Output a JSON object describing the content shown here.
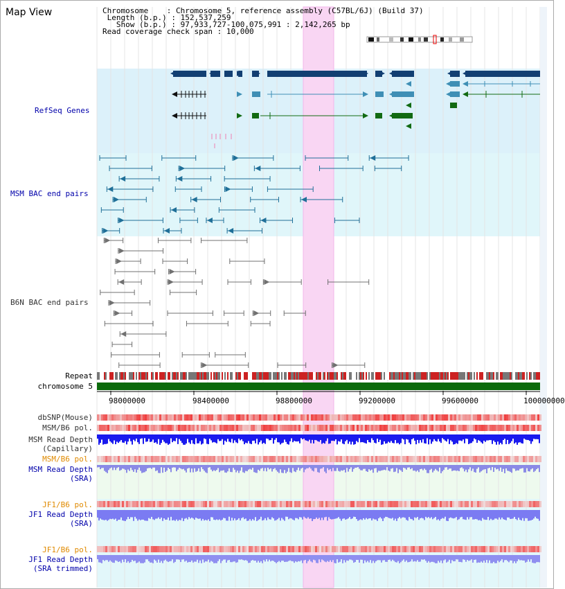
{
  "header": {
    "title": "Map View",
    "chromosome_label": "Chromosome",
    "chromosome_value": "Chromosome 5, reference assembly (C57BL/6J) (Build 37)",
    "length_label": "Length (b.p.)",
    "length_value": "152,537,259",
    "show_label": "Show (b.p.)",
    "show_value": "97,933,727-100,075,991 : 2,142,265 bp",
    "coverage_label": "Read coverage check span",
    "coverage_value": "10,000"
  },
  "tracks": {
    "refseq": "RefSeq Genes",
    "msm_bac": "MSM BAC end pairs",
    "b6n_bac": "B6N BAC end pairs",
    "repeat": "Repeat",
    "chromosome": "chromosome 5",
    "dbsnp": "dbSNP(Mouse)",
    "msm_b6_pol_1": "MSM/B6 pol.",
    "msm_depth_cap_1": "MSM Read Depth",
    "msm_depth_cap_2": "(Capillary)",
    "msm_b6_pol_2": "MSM/B6 pol.",
    "msm_depth_sra_1": "MSM Read Depth",
    "msm_depth_sra_2": "(SRA)",
    "jf1_b6_pol_1": "JF1/B6 pol.",
    "jf1_depth_sra_1": "JF1 Read Depth",
    "jf1_depth_sra_2": "(SRA)",
    "jf1_b6_pol_2": "JF1/B6 pol.",
    "jf1_depth_trim_1": "JF1 Read Depth",
    "jf1_depth_trim_2": "(SRA trimmed)"
  },
  "axis": {
    "ticks": [
      "98000000",
      "98400000",
      "98800000",
      "99200000",
      "99600000",
      "100000000"
    ]
  },
  "colors": {
    "highlight": "#f9d6f3",
    "refseq_bg": "#dcf1fa",
    "msm_bg": "#e0f6fa",
    "gene_dark": "#123f72",
    "gene_blue": "#3f8fb5",
    "gene_green": "#126a12",
    "msm_pair": "#1f6f98",
    "b6n_pair": "#707070",
    "chromosome_bar": "#0b6a0b",
    "label_blue": "#0000aa",
    "label_orange": "#e08a00"
  }
}
